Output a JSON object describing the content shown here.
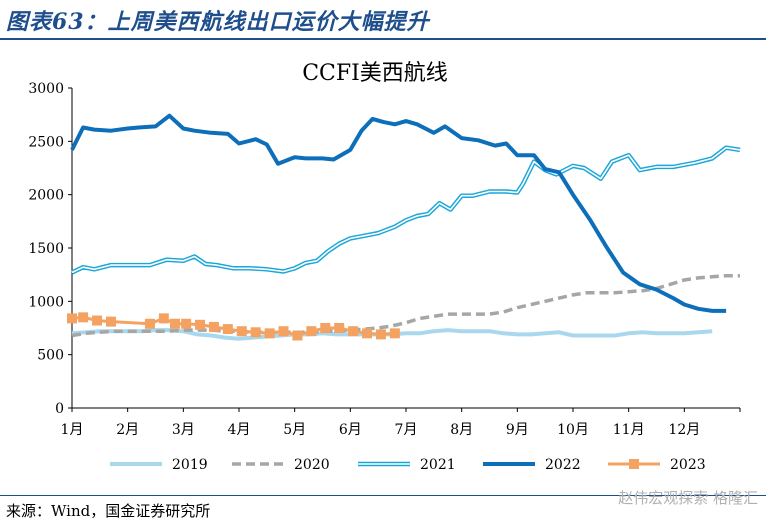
{
  "header": {
    "title": "图表63：上周美西航线出口运价大幅提升"
  },
  "footer": {
    "source": "来源：Wind，国金证券研究所",
    "watermark": "赵伟宏观探索 格隆汇"
  },
  "colors": {
    "accent": "#1f4e8c",
    "s2019": "#a9d8ee",
    "s2020": "#a6a6a6",
    "s2021": "#1aa6d8",
    "s2022": "#0d6fba",
    "s2023": "#f4a262"
  },
  "chart_data": {
    "type": "line",
    "title": "CCFI美西航线",
    "xlabel": "",
    "ylabel": "",
    "ylim": [
      0,
      3000
    ],
    "yticks": [
      0,
      500,
      1000,
      1500,
      2000,
      2500,
      3000
    ],
    "xlim": [
      1,
      13
    ],
    "xticks": [
      1,
      2,
      3,
      4,
      5,
      6,
      7,
      8,
      9,
      10,
      11,
      12
    ],
    "xtick_labels": [
      "1月",
      "2月",
      "3月",
      "4月",
      "5月",
      "6月",
      "7月",
      "8月",
      "9月",
      "10月",
      "11月",
      "12月"
    ],
    "grid": false,
    "legend": "bottom",
    "series": [
      {
        "name": "2019",
        "style": "solid",
        "color": "#a9d8ee",
        "x": [
          1,
          1.25,
          1.5,
          1.75,
          2,
          2.25,
          2.5,
          2.75,
          3,
          3.25,
          3.5,
          3.75,
          4,
          4.25,
          4.5,
          4.75,
          5,
          5.25,
          5.5,
          5.75,
          6,
          6.25,
          6.5,
          6.75,
          7,
          7.25,
          7.5,
          7.75,
          8,
          8.25,
          8.5,
          8.75,
          9,
          9.25,
          9.5,
          9.75,
          10,
          10.25,
          10.5,
          10.75,
          11,
          11.25,
          11.5,
          11.75,
          12,
          12.25,
          12.5
        ],
        "y": [
          700,
          710,
          720,
          720,
          720,
          720,
          730,
          730,
          720,
          690,
          680,
          660,
          650,
          660,
          670,
          680,
          690,
          690,
          700,
          690,
          690,
          690,
          690,
          690,
          700,
          700,
          720,
          730,
          720,
          720,
          720,
          700,
          690,
          690,
          700,
          710,
          680,
          680,
          680,
          680,
          700,
          710,
          700,
          700,
          700,
          710,
          720
        ]
      },
      {
        "name": "2020",
        "style": "dashed",
        "color": "#a6a6a6",
        "x": [
          1,
          1.25,
          1.5,
          1.75,
          2,
          2.25,
          2.5,
          2.75,
          3,
          3.25,
          3.5,
          3.75,
          4,
          4.25,
          4.5,
          4.75,
          5,
          5.25,
          5.5,
          5.75,
          6,
          6.25,
          6.5,
          6.75,
          7,
          7.25,
          7.5,
          7.75,
          8,
          8.25,
          8.5,
          8.75,
          9,
          9.25,
          9.5,
          9.75,
          10,
          10.25,
          10.5,
          10.75,
          11,
          11.25,
          11.5,
          11.75,
          12,
          12.25,
          12.5,
          12.75,
          13
        ],
        "y": [
          680,
          700,
          710,
          720,
          720,
          720,
          720,
          720,
          730,
          730,
          730,
          720,
          720,
          710,
          710,
          710,
          710,
          710,
          720,
          720,
          730,
          740,
          750,
          770,
          800,
          840,
          860,
          880,
          880,
          880,
          880,
          900,
          940,
          970,
          1000,
          1030,
          1060,
          1080,
          1080,
          1080,
          1090,
          1100,
          1120,
          1160,
          1200,
          1220,
          1230,
          1240,
          1240
        ]
      },
      {
        "name": "2021",
        "style": "double",
        "color": "#1aa6d8",
        "x": [
          1,
          1.2,
          1.4,
          1.7,
          2,
          2.4,
          2.7,
          3,
          3.2,
          3.4,
          3.6,
          3.9,
          4.2,
          4.5,
          4.8,
          5,
          5.2,
          5.4,
          5.6,
          5.8,
          6,
          6.2,
          6.5,
          6.8,
          7,
          7.2,
          7.4,
          7.6,
          7.8,
          8,
          8.2,
          8.5,
          8.8,
          9,
          9.1,
          9.3,
          9.5,
          9.7,
          10,
          10.2,
          10.5,
          10.7,
          11,
          11.2,
          11.5,
          11.8,
          12,
          12.2,
          12.5,
          12.75,
          13
        ],
        "y": [
          1270,
          1320,
          1300,
          1340,
          1340,
          1340,
          1390,
          1380,
          1420,
          1350,
          1340,
          1310,
          1310,
          1300,
          1280,
          1310,
          1360,
          1380,
          1470,
          1540,
          1590,
          1610,
          1640,
          1700,
          1760,
          1800,
          1820,
          1920,
          1860,
          1990,
          1990,
          2030,
          2030,
          2020,
          2100,
          2310,
          2230,
          2190,
          2270,
          2250,
          2150,
          2310,
          2370,
          2230,
          2260,
          2260,
          2280,
          2300,
          2340,
          2440,
          2420
        ]
      },
      {
        "name": "2022",
        "style": "solid",
        "color": "#0d6fba",
        "x": [
          1,
          1.2,
          1.4,
          1.7,
          2,
          2.2,
          2.5,
          2.75,
          3,
          3.2,
          3.5,
          3.8,
          4,
          4.3,
          4.5,
          4.7,
          5,
          5.2,
          5.5,
          5.7,
          6,
          6.2,
          6.4,
          6.6,
          6.8,
          7,
          7.2,
          7.5,
          7.7,
          8,
          8.3,
          8.6,
          8.8,
          9,
          9.3,
          9.5,
          9.75,
          10,
          10.3,
          10.6,
          10.9,
          11.2,
          11.5,
          11.8,
          12,
          12.25,
          12.5,
          12.75
        ],
        "y": [
          2420,
          2630,
          2610,
          2600,
          2620,
          2630,
          2640,
          2740,
          2620,
          2600,
          2580,
          2570,
          2480,
          2520,
          2470,
          2290,
          2350,
          2340,
          2340,
          2330,
          2420,
          2600,
          2710,
          2680,
          2660,
          2690,
          2660,
          2580,
          2640,
          2530,
          2510,
          2460,
          2480,
          2370,
          2370,
          2240,
          2210,
          2000,
          1770,
          1510,
          1270,
          1160,
          1110,
          1030,
          970,
          930,
          910,
          910
        ]
      },
      {
        "name": "2023",
        "style": "marker",
        "color": "#f4a262",
        "x": [
          1,
          1.2,
          1.45,
          1.7,
          2.4,
          2.65,
          2.85,
          3.05,
          3.3,
          3.55,
          3.8,
          4.05,
          4.3,
          4.55,
          4.8,
          5.05,
          5.3,
          5.55,
          5.8,
          6.05,
          6.3,
          6.55,
          6.8
        ],
        "y": [
          840,
          850,
          820,
          810,
          790,
          840,
          790,
          790,
          780,
          760,
          740,
          720,
          710,
          700,
          720,
          680,
          720,
          750,
          750,
          720,
          700,
          690,
          700
        ]
      }
    ]
  }
}
